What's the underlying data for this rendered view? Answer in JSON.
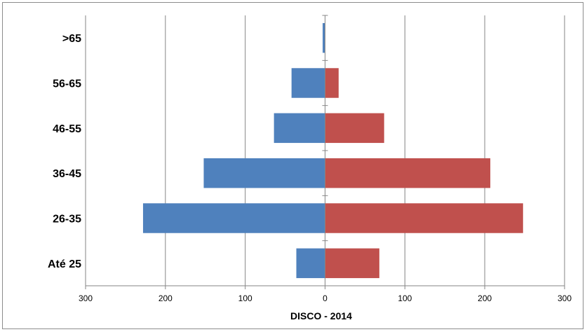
{
  "chart_data": {
    "type": "bar",
    "orientation": "horizontal",
    "layout": "population-pyramid",
    "categories": [
      "Até 25",
      "26-35",
      "36-45",
      "46-55",
      "56-65",
      ">65"
    ],
    "series": [
      {
        "values": [
          36,
          228,
          152,
          64,
          42,
          3
        ]
      },
      {
        "values": [
          68,
          248,
          207,
          74,
          17,
          0
        ]
      }
    ],
    "colors": [
      "#4f81bd",
      "#c0504d"
    ],
    "x_ticks": [
      {
        "value": -300,
        "label": "300"
      },
      {
        "value": -200,
        "label": "200"
      },
      {
        "value": -100,
        "label": "100"
      },
      {
        "value": 0,
        "label": "0"
      },
      {
        "value": 100,
        "label": "100"
      },
      {
        "value": 200,
        "label": "200"
      },
      {
        "value": 300,
        "label": "300"
      }
    ],
    "xlim": [
      -300,
      300
    ],
    "xlabel": "DISCO - 2014",
    "grid": "vertical",
    "legend": "none"
  }
}
